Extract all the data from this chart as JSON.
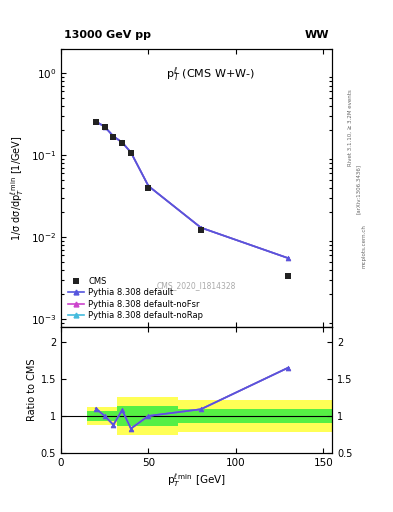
{
  "title_left": "13000 GeV pp",
  "title_right": "WW",
  "main_label": "p$_T^{\\ell}$ (CMS W+W-)",
  "watermark": "CMS_2020_I1814328",
  "rivet_label": "Rivet 3.1.10, ≥ 3.2M events",
  "arxiv_label": "[arXiv:1306.3436]",
  "mcplots_label": "mcplots.cern.ch",
  "cms_x": [
    20,
    25,
    30,
    35,
    40,
    50,
    80,
    130
  ],
  "cms_y": [
    0.255,
    0.22,
    0.165,
    0.14,
    0.105,
    0.04,
    0.012,
    0.0033
  ],
  "py_x": [
    20,
    25,
    30,
    35,
    40,
    50,
    80,
    130
  ],
  "py_default_y": [
    0.258,
    0.222,
    0.17,
    0.143,
    0.108,
    0.042,
    0.013,
    0.0055
  ],
  "py_noFsr_y": [
    0.258,
    0.222,
    0.17,
    0.143,
    0.108,
    0.042,
    0.013,
    0.0055
  ],
  "py_noRap_y": [
    0.258,
    0.222,
    0.17,
    0.143,
    0.108,
    0.042,
    0.013,
    0.0055
  ],
  "ratio_x": [
    20,
    25,
    30,
    35,
    40,
    50,
    80,
    130
  ],
  "ratio_vals": [
    1.1,
    1.0,
    0.88,
    1.08,
    0.83,
    1.0,
    1.09,
    1.65
  ],
  "band_yellow_edges": [
    15,
    32,
    32,
    67,
    67,
    155
  ],
  "band_yellow_lo": [
    0.88,
    0.88,
    0.75,
    0.75,
    0.78,
    0.78
  ],
  "band_yellow_hi": [
    1.12,
    1.12,
    1.25,
    1.25,
    1.22,
    1.22
  ],
  "band_green_lo": [
    0.93,
    0.93,
    0.87,
    0.87,
    0.9,
    0.9
  ],
  "band_green_hi": [
    1.07,
    1.07,
    1.13,
    1.13,
    1.1,
    1.1
  ],
  "color_default": "#5555dd",
  "color_noFsr": "#cc44cc",
  "color_noRap": "#44bbdd",
  "color_cms": "#222222",
  "color_yellow": "#ffff44",
  "color_green": "#44ee44",
  "xlim": [
    15,
    155
  ],
  "ylim_main": [
    0.0008,
    2.0
  ],
  "ylim_ratio": [
    0.5,
    2.2
  ],
  "xlabel": "p$_T^{\\ell\\, {\\rm min}}$ [GeV]",
  "ylabel_main": "1/σ dσ/dp$_T^{\\ell\\, {\\rm min}}$ [1/GeV]",
  "ylabel_ratio": "Ratio to CMS",
  "xticks": [
    0,
    50,
    100,
    150
  ],
  "xticklabels": [
    "0",
    "50",
    "100",
    "150"
  ]
}
